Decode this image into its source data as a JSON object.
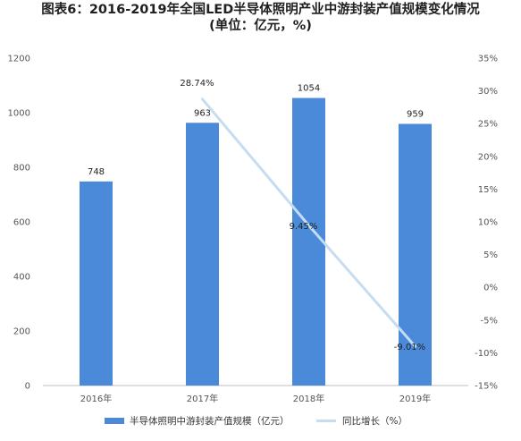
{
  "chart_data": {
    "type": "bar",
    "title": "图表6：2016-2019年全国LED半导体照明产业中游封装产值规模变化情况",
    "subtitle": "(单位：亿元，%)",
    "categories": [
      "2016年",
      "2017年",
      "2018年",
      "2019年"
    ],
    "series": [
      {
        "name": "半导体照明中游封装产值规模（亿元）",
        "type": "bar",
        "axis": "left",
        "color": "#4a8ad8",
        "values": [
          748,
          963,
          1054,
          959
        ],
        "labels": [
          "748",
          "963",
          "1054",
          "959"
        ]
      },
      {
        "name": "同比增长（%）",
        "type": "line",
        "axis": "right",
        "color": "#c5ddf2",
        "values": [
          null,
          28.74,
          9.45,
          -9.01
        ],
        "labels": [
          "",
          "28.74%",
          "9.45%",
          "-9.01%"
        ]
      }
    ],
    "left_axis": {
      "ylim": [
        0,
        1200
      ],
      "ticks": [
        "0",
        "200",
        "400",
        "600",
        "800",
        "1000",
        "1200"
      ]
    },
    "right_axis": {
      "ylim": [
        -15,
        35
      ],
      "ticks": [
        "-15%",
        "-10%",
        "-5%",
        "0%",
        "5%",
        "10%",
        "15%",
        "20%",
        "25%",
        "30%",
        "35%"
      ]
    },
    "grid": false,
    "legend_position": "bottom"
  }
}
